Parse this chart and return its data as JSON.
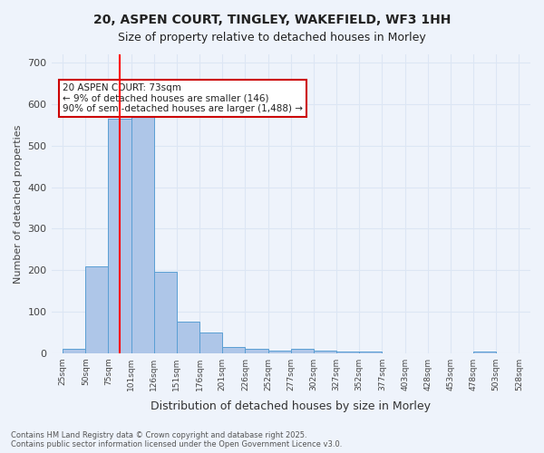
{
  "title_line1": "20, ASPEN COURT, TINGLEY, WAKEFIELD, WF3 1HH",
  "title_line2": "Size of property relative to detached houses in Morley",
  "xlabel": "Distribution of detached houses by size in Morley",
  "ylabel": "Number of detached properties",
  "footnote": "Contains HM Land Registry data © Crown copyright and database right 2025.\nContains public sector information licensed under the Open Government Licence v3.0.",
  "bin_labels": [
    "25sqm",
    "50sqm",
    "75sqm",
    "101sqm",
    "126sqm",
    "151sqm",
    "176sqm",
    "201sqm",
    "226sqm",
    "252sqm",
    "277sqm",
    "302sqm",
    "327sqm",
    "352sqm",
    "377sqm",
    "403sqm",
    "428sqm",
    "453sqm",
    "478sqm",
    "503sqm",
    "528sqm"
  ],
  "bar_values": [
    10,
    210,
    565,
    575,
    195,
    75,
    50,
    15,
    10,
    5,
    10,
    5,
    4,
    3,
    0,
    0,
    0,
    0,
    3,
    0,
    0
  ],
  "bar_color": "#aec6e8",
  "bar_edge_color": "#5a9fd4",
  "grid_color": "#dce6f4",
  "background_color": "#eef3fb",
  "annotation_text": "20 ASPEN COURT: 73sqm\n← 9% of detached houses are smaller (146)\n90% of semi-detached houses are larger (1,488) →",
  "annotation_box_color": "#ffffff",
  "annotation_box_edge": "#cc0000",
  "red_line_x": 75,
  "ylim": [
    0,
    720
  ],
  "yticks": [
    0,
    100,
    200,
    300,
    400,
    500,
    600,
    700
  ]
}
